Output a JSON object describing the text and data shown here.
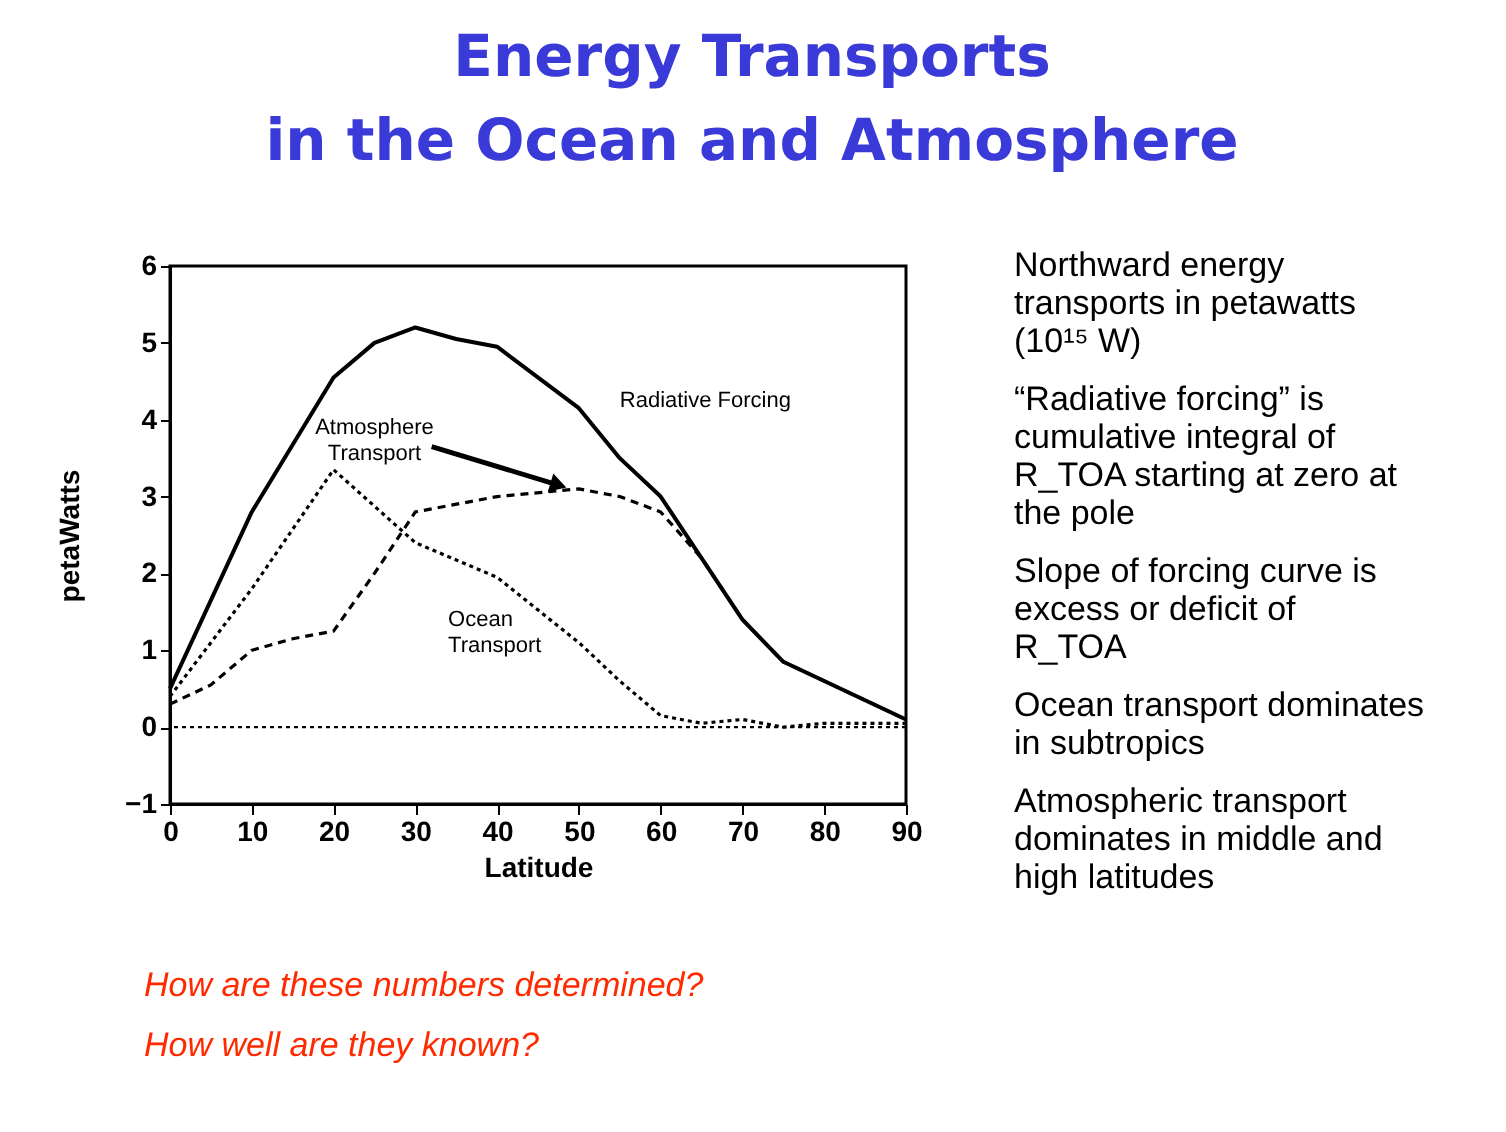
{
  "chart_data": {
    "type": "line",
    "title": "Energy Transports\nin the Ocean and Atmosphere",
    "xlabel": "Latitude",
    "ylabel": "petaWatts",
    "series": [
      {
        "name": "Radiative Forcing",
        "color": "#000000",
        "line_style": "solid",
        "x": [
          0,
          10,
          20,
          25,
          30,
          35,
          40,
          50,
          55,
          60,
          65,
          70,
          75,
          80,
          85,
          90
        ],
        "values": [
          0.5,
          2.8,
          4.55,
          5.0,
          5.2,
          5.05,
          4.95,
          4.15,
          3.5,
          3.0,
          2.2,
          1.4,
          0.85,
          0.6,
          0.35,
          0.1
        ]
      },
      {
        "name": "Atmosphere Transport",
        "color": "#000000",
        "line_style": "dashed",
        "x": [
          0,
          5,
          10,
          15,
          20,
          25,
          30,
          40,
          50,
          55,
          60,
          65,
          70,
          75,
          80,
          85,
          90
        ],
        "values": [
          0.3,
          0.55,
          1.0,
          1.15,
          1.25,
          2.0,
          2.8,
          3.0,
          3.1,
          3.0,
          2.8,
          2.2,
          1.4,
          0.85,
          0.6,
          0.35,
          0.1
        ]
      },
      {
        "name": "Ocean Transport",
        "color": "#000000",
        "line_style": "dotted",
        "x": [
          0,
          10,
          20,
          30,
          40,
          50,
          55,
          60,
          65,
          70,
          75,
          80,
          90
        ],
        "values": [
          0.4,
          1.8,
          3.35,
          2.4,
          1.95,
          1.1,
          0.6,
          0.15,
          0.05,
          0.1,
          0.0,
          0.05,
          0.05
        ]
      }
    ],
    "xlim": [
      0,
      90
    ],
    "xticks": [
      0,
      10,
      20,
      30,
      40,
      50,
      60,
      70,
      80,
      90
    ],
    "ylim": [
      -1,
      6
    ],
    "yticks": [
      -1,
      0,
      1,
      2,
      3,
      4,
      5,
      6
    ],
    "ref_lines": [
      {
        "axis": "y",
        "value": 0,
        "line_style": "dotted",
        "color": "#000000"
      }
    ],
    "grid": false,
    "annotations": [
      "Northward energy transports in petawatts (10¹⁵ W)",
      "“Radiative forcing” is cumulative integral of R_TOA starting at zero at the pole",
      "Slope of forcing curve is excess or deficit of R_TOA",
      "Ocean transport dominates in subtropics",
      "Atmospheric transport dominates in middle and high latitudes",
      "How are these numbers determined?",
      "How well are they known?"
    ]
  }
}
